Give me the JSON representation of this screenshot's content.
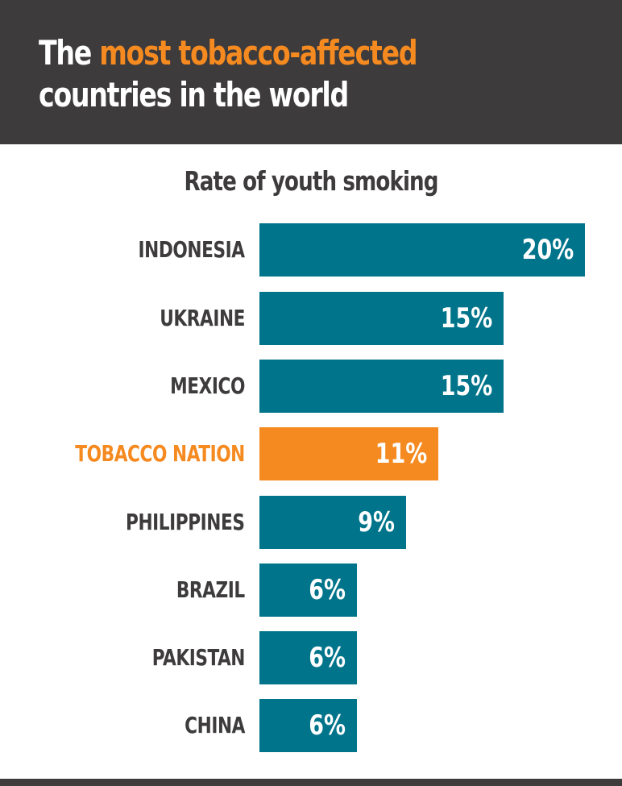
{
  "header": {
    "title_part1": "The ",
    "title_highlight": "most tobacco-affected",
    "title_part2": "countries in the world"
  },
  "colors": {
    "dark": "#3d3b3c",
    "teal": "#00748a",
    "orange": "#f58a20",
    "background": "#ffffff"
  },
  "chart_data": {
    "type": "bar",
    "orientation": "horizontal",
    "title": "Rate of youth smoking",
    "xlabel": "",
    "ylabel": "",
    "categories": [
      "INDONESIA",
      "UKRAINE",
      "MEXICO",
      "TOBACCO NATION",
      "PHILIPPINES",
      "BRAZIL",
      "PAKISTAN",
      "CHINA"
    ],
    "values": [
      20,
      15,
      15,
      11,
      9,
      6,
      6,
      6
    ],
    "value_labels": [
      "20%",
      "15%",
      "15%",
      "11%",
      "9%",
      "6%",
      "6%",
      "6%"
    ],
    "highlighted": "TOBACCO NATION",
    "unit": "%",
    "grid": false,
    "legend": null
  },
  "rows": [
    {
      "label": "INDONESIA",
      "value": "20%"
    },
    {
      "label": "UKRAINE",
      "value": "15%"
    },
    {
      "label": "MEXICO",
      "value": "15%"
    },
    {
      "label": "TOBACCO NATION",
      "value": "11%"
    },
    {
      "label": "PHILIPPINES",
      "value": "9%"
    },
    {
      "label": "BRAZIL",
      "value": "6%"
    },
    {
      "label": "PAKISTAN",
      "value": "6%"
    },
    {
      "label": "CHINA",
      "value": "6%"
    }
  ]
}
